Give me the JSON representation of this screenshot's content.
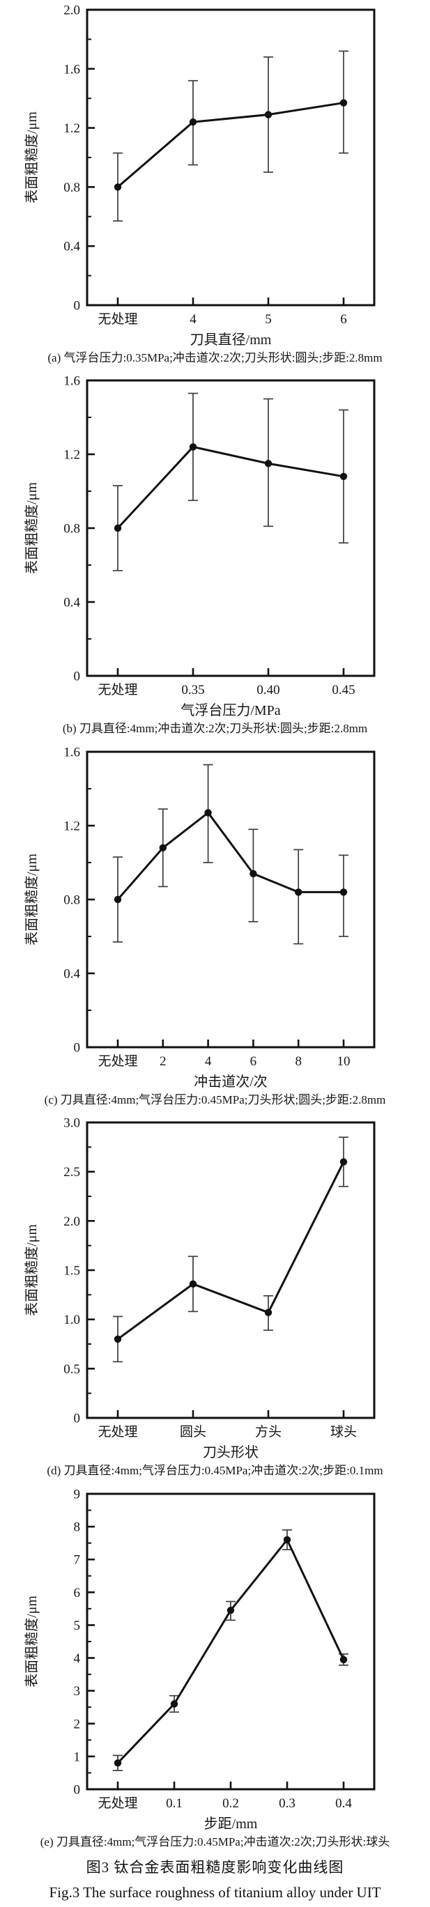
{
  "figure": {
    "caption_cn": "图3  钛合金表面粗糙度影响变化曲线图",
    "caption_en": "Fig.3  The surface roughness of titanium alloy under UIT"
  },
  "colors": {
    "line": "#111111",
    "marker": "#111111",
    "error_bar": "#3d3d3d",
    "frame": "#111111",
    "text": "#161616"
  },
  "chart_data": [
    {
      "id": "a",
      "type": "line",
      "title": "",
      "ylabel": "表面粗糙度/μm",
      "xlabel": "刀具直径/mm",
      "categories": [
        "无处理",
        "4",
        "5",
        "6"
      ],
      "values": [
        0.8,
        1.24,
        1.29,
        1.37
      ],
      "err_low": [
        0.57,
        0.95,
        0.9,
        1.03
      ],
      "err_high": [
        1.03,
        1.52,
        1.68,
        1.72
      ],
      "ylim": [
        0,
        2.0
      ],
      "ytick_values": [
        0,
        0.4,
        0.8,
        1.2,
        1.6,
        2.0
      ],
      "ytick_labels": [
        "0",
        "0.4",
        "0.8",
        "1.2",
        "1.6",
        "2.0"
      ],
      "yminor_step": 0.2,
      "grid": false,
      "legend": "none",
      "caption": "(a) 气浮台压力:0.35MPa;冲击道次:2次;刀头形状:圆头;步距:2.8mm"
    },
    {
      "id": "b",
      "type": "line",
      "title": "",
      "ylabel": "表面粗糙度/μm",
      "xlabel": "气浮台压力/MPa",
      "categories": [
        "无处理",
        "0.35",
        "0.40",
        "0.45"
      ],
      "values": [
        0.8,
        1.24,
        1.15,
        1.08
      ],
      "err_low": [
        0.57,
        0.95,
        0.81,
        0.72
      ],
      "err_high": [
        1.03,
        1.53,
        1.5,
        1.44
      ],
      "ylim": [
        0,
        1.6
      ],
      "ytick_values": [
        0,
        0.4,
        0.8,
        1.2,
        1.6
      ],
      "ytick_labels": [
        "0",
        "0.4",
        "0.8",
        "1.2",
        "1.6"
      ],
      "yminor_step": 0.2,
      "grid": false,
      "legend": "none",
      "caption": "(b) 刀具直径:4mm;冲击道次:2次;刀头形状:圆头;步距:2.8mm"
    },
    {
      "id": "c",
      "type": "line",
      "title": "",
      "ylabel": "表面粗糙度/μm",
      "xlabel": "冲击道次/次",
      "categories": [
        "无处理",
        "2",
        "4",
        "6",
        "8",
        "10"
      ],
      "values": [
        0.8,
        1.08,
        1.27,
        0.94,
        0.84,
        0.84
      ],
      "err_low": [
        0.57,
        0.87,
        1.0,
        0.68,
        0.56,
        0.6
      ],
      "err_high": [
        1.03,
        1.29,
        1.53,
        1.18,
        1.07,
        1.04
      ],
      "ylim": [
        0,
        1.6
      ],
      "ytick_values": [
        0,
        0.4,
        0.8,
        1.2,
        1.6
      ],
      "ytick_labels": [
        "0",
        "0.4",
        "0.8",
        "1.2",
        "1.6"
      ],
      "yminor_step": 0.2,
      "grid": false,
      "legend": "none",
      "caption": "(c) 刀具直径:4mm;气浮台压力:0.45MPa;刀头形状;圆头;步距:2.8mm"
    },
    {
      "id": "d",
      "type": "line",
      "title": "",
      "ylabel": "表面粗糙度/μm",
      "xlabel": "刀头形状",
      "categories": [
        "无处理",
        "圆头",
        "方头",
        "球头"
      ],
      "values": [
        0.8,
        1.36,
        1.07,
        2.6
      ],
      "err_low": [
        0.57,
        1.08,
        0.89,
        2.35
      ],
      "err_high": [
        1.03,
        1.64,
        1.24,
        2.85
      ],
      "ylim": [
        0,
        3.0
      ],
      "ytick_values": [
        0,
        0.5,
        1.0,
        1.5,
        2.0,
        2.5,
        3.0
      ],
      "ytick_labels": [
        "0",
        "0.5",
        "1.0",
        "1.5",
        "2.0",
        "2.5",
        "3.0"
      ],
      "yminor_step": 0.25,
      "grid": false,
      "legend": "none",
      "caption": "(d) 刀具直径:4mm;气浮台压力:0.45MPa;冲击道次:2次;步距:0.1mm"
    },
    {
      "id": "e",
      "type": "line",
      "title": "",
      "ylabel": "表面粗糙度/μm",
      "xlabel": "步距/mm",
      "categories": [
        "无处理",
        "0.1",
        "0.2",
        "0.3",
        "0.4"
      ],
      "values": [
        0.8,
        2.6,
        5.45,
        7.6,
        3.95
      ],
      "err_low": [
        0.57,
        2.35,
        5.15,
        7.3,
        3.78
      ],
      "err_high": [
        1.03,
        2.85,
        5.72,
        7.9,
        4.12
      ],
      "ylim": [
        0,
        9
      ],
      "ytick_values": [
        0,
        1,
        2,
        3,
        4,
        5,
        6,
        7,
        8,
        9
      ],
      "ytick_labels": [
        "0",
        "1",
        "2",
        "3",
        "4",
        "5",
        "6",
        "7",
        "8",
        "9"
      ],
      "yminor_step": 0.5,
      "grid": false,
      "legend": "none",
      "caption": "(e) 刀具直径:4mm;气浮台压力:0.45MPa;冲击道次:2次;刀头形状:球头"
    }
  ]
}
